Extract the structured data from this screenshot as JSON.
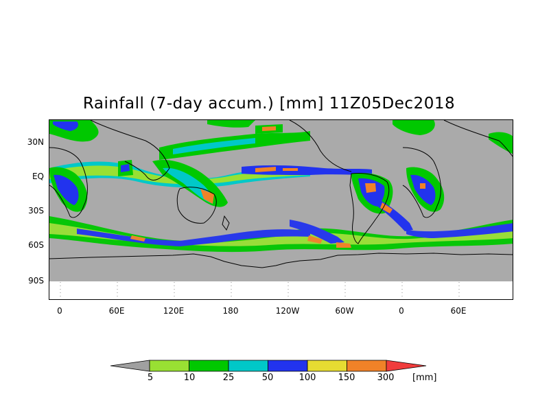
{
  "title": "Rainfall (7-day accum.) [mm] 11Z05Dec2018",
  "map": {
    "lat_labels": [
      "30N",
      "EQ",
      "30S",
      "60S",
      "90S"
    ],
    "lon_labels": [
      "0",
      "60E",
      "120E",
      "180",
      "120W",
      "60W",
      "0",
      "60E"
    ],
    "land_color": "#aaaaaa",
    "ocean_color": "#aaaaaa"
  },
  "colorbar": {
    "unit": "[mm]",
    "thresholds": [
      "5",
      "10",
      "25",
      "50",
      "100",
      "150",
      "300"
    ],
    "colors": [
      "#a0a0a0",
      "#99e033",
      "#00c800",
      "#00c8c8",
      "#2233ee",
      "#e6dc32",
      "#f08228",
      "#f03c3c"
    ]
  }
}
